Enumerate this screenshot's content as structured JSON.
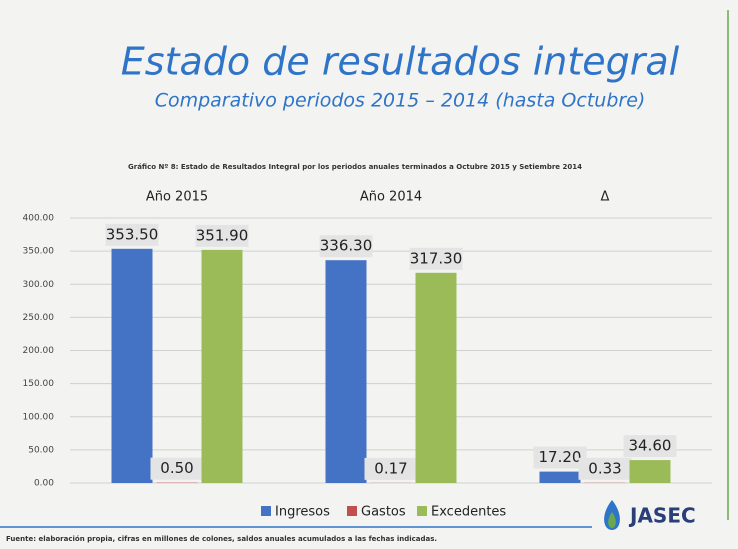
{
  "chart_data": {
    "type": "bar",
    "title": "Estado de resultados integral",
    "subtitle": "Comparativo periodos 2015 – 2014 (hasta Octubre)",
    "caption": "Gráfico Nº 8: Estado de Resultados Integral por los periodos anuales terminados a Octubre 2015 y Setiembre 2014",
    "source": "Fuente: elaboración propia, cifras en millones de colones, saldos anuales acumulados a las fechas indicadas.",
    "logo": "JASEC",
    "categories": [
      "Año 2015",
      "Año 2014",
      "Δ"
    ],
    "series": [
      {
        "name": "Ingresos",
        "color": "#4472c4",
        "values": [
          353.5,
          336.3,
          17.2
        ],
        "value_labels": [
          "353.50",
          "336.30",
          "17.20"
        ]
      },
      {
        "name": "Gastos",
        "color": "#c0504d",
        "values": [
          0.5,
          0.17,
          0.33
        ],
        "value_labels": [
          "0.50",
          "0.17",
          "0.33"
        ]
      },
      {
        "name": "Excedentes",
        "color": "#9bbb59",
        "values": [
          351.9,
          317.3,
          34.6
        ],
        "value_labels": [
          "351.90",
          "317.30",
          "34.60"
        ]
      }
    ],
    "ylim": [
      0,
      400
    ],
    "yticks": [
      {
        "value": 0,
        "label": "0.00"
      },
      {
        "value": 50,
        "label": "50.00"
      },
      {
        "value": 100,
        "label": "100.00"
      },
      {
        "value": 150,
        "label": "150.00"
      },
      {
        "value": 200,
        "label": "200.00"
      },
      {
        "value": 250,
        "label": "250.00"
      },
      {
        "value": 300,
        "label": "300.00"
      },
      {
        "value": 350,
        "label": "350.00"
      },
      {
        "value": 400,
        "label": "400.00"
      }
    ],
    "grid": true,
    "legend": "bottom"
  }
}
